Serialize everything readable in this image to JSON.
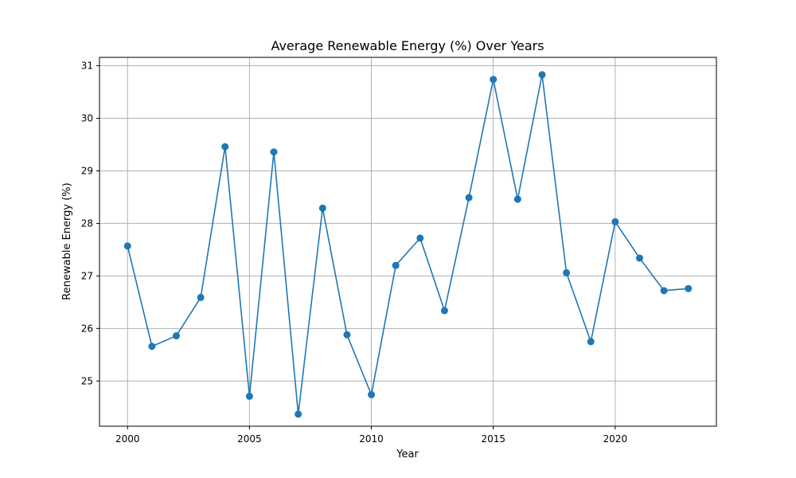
{
  "chart_data": {
    "type": "line",
    "title": "Average Renewable Energy (%) Over Years",
    "xlabel": "Year",
    "ylabel": "Renewable Energy (%)",
    "x": [
      2000,
      2001,
      2002,
      2003,
      2004,
      2005,
      2006,
      2007,
      2008,
      2009,
      2010,
      2011,
      2012,
      2013,
      2014,
      2015,
      2016,
      2017,
      2018,
      2019,
      2020,
      2021,
      2022,
      2023
    ],
    "series": [
      {
        "values": [
          27.57,
          25.66,
          25.86,
          26.59,
          29.46,
          24.71,
          29.36,
          24.37,
          28.29,
          25.88,
          24.74,
          27.2,
          27.72,
          26.34,
          28.49,
          30.74,
          28.46,
          30.83,
          27.06,
          25.75,
          28.03,
          27.34,
          26.72,
          26.76
        ],
        "color": "#1f77b4"
      }
    ],
    "xlim": [
      1998.85,
      2024.15
    ],
    "ylim": [
      24.14,
      31.16
    ],
    "xticks": [
      2000,
      2005,
      2010,
      2015,
      2020
    ],
    "xtick_labels": [
      "2000",
      "2005",
      "2010",
      "2015",
      "2020"
    ],
    "yticks": [
      25,
      26,
      27,
      28,
      29,
      30,
      31
    ],
    "ytick_labels": [
      "25",
      "26",
      "27",
      "28",
      "29",
      "30",
      "31"
    ],
    "grid": true,
    "marker": "circle"
  }
}
